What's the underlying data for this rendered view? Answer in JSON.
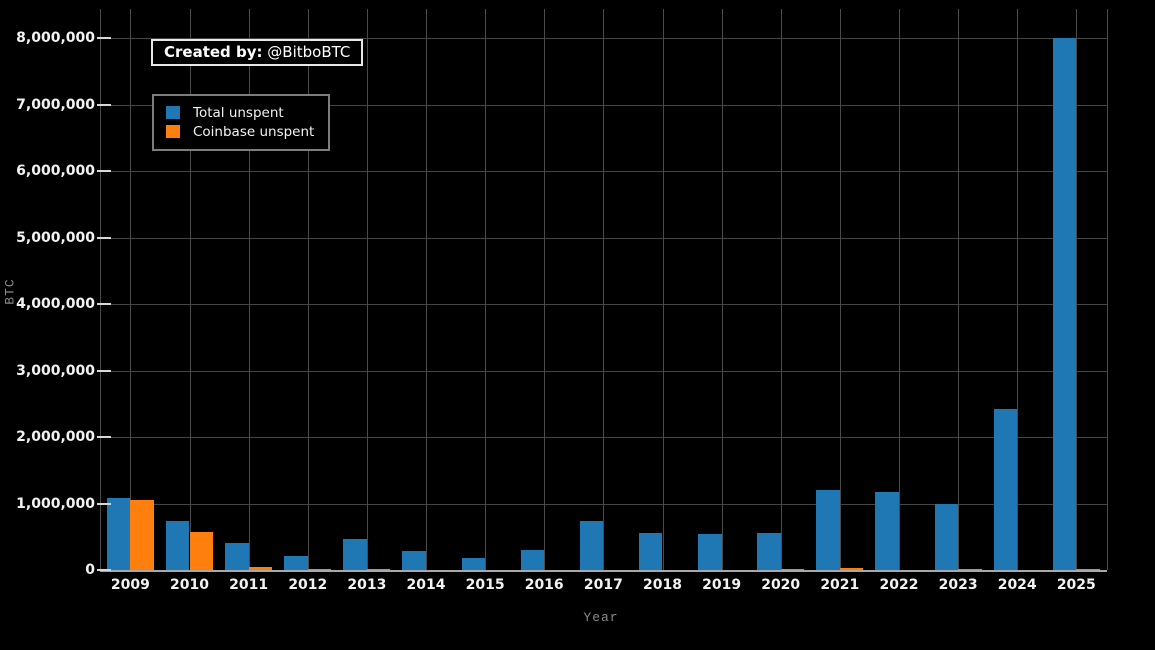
{
  "annotation": {
    "prefix": "Created by:",
    "handle": " @BitboBTC"
  },
  "legend": {
    "items": [
      {
        "label": "Total unspent",
        "color": "#1f77b4"
      },
      {
        "label": "Coinbase unspent",
        "color": "#ff7f0e"
      }
    ]
  },
  "colors": {
    "background": "#000000",
    "total_unspent": "#1f77b4",
    "coinbase_unspent": "#ff7f0e",
    "gridline": "#454545",
    "axis_spine": "#a8a8a8",
    "tick_text": "#f2f2f2",
    "axis_title_text": "#8a8a8a"
  },
  "chart_data": {
    "type": "bar",
    "title": "",
    "xlabel": "Year",
    "ylabel": "BTC",
    "categories": [
      "2009",
      "2010",
      "2011",
      "2012",
      "2013",
      "2014",
      "2015",
      "2016",
      "2017",
      "2018",
      "2019",
      "2020",
      "2021",
      "2022",
      "2023",
      "2024",
      "2025"
    ],
    "series": [
      {
        "name": "Total unspent",
        "color": "#1f77b4",
        "values": [
          1080000,
          740000,
          400000,
          215000,
          470000,
          280000,
          175000,
          300000,
          745000,
          560000,
          545000,
          550000,
          1200000,
          1170000,
          990000,
          2420000,
          8000000
        ]
      },
      {
        "name": "Coinbase unspent",
        "color": "#ff7f0e",
        "values": [
          1060000,
          570000,
          45000,
          15000,
          8000,
          0,
          0,
          0,
          0,
          0,
          0,
          12000,
          25000,
          0,
          10000,
          0,
          10000
        ]
      }
    ],
    "ylim": [
      0,
      8440000
    ],
    "yticks": [
      0,
      1000000,
      2000000,
      3000000,
      4000000,
      5000000,
      6000000,
      7000000,
      8000000
    ],
    "ytick_labels": [
      "0",
      "1,000,000",
      "2,000,000",
      "3,000,000",
      "4,000,000",
      "5,000,000",
      "6,000,000",
      "7,000,000",
      "8,000,000"
    ],
    "grid": true,
    "legend_position": "upper-left",
    "background": "#000000"
  }
}
